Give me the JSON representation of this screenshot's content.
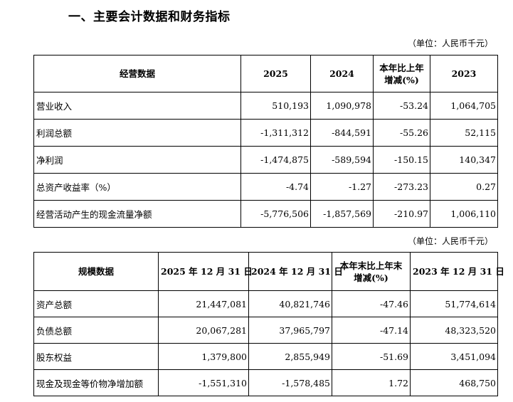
{
  "heading": "一、主要会计数据和财务指标",
  "unit_label": "（单位：人民币千元）",
  "operating": {
    "headers": [
      "经营数据",
      "2025",
      "2024",
      "本年比上年\n增减(%)",
      "2023"
    ],
    "rows": [
      [
        "营业收入",
        "510,193",
        "1,090,978",
        "-53.24",
        "1,064,705"
      ],
      [
        "利润总额",
        "-1,311,312",
        "-844,591",
        "-55.26",
        "52,115"
      ],
      [
        "净利润",
        "-1,474,875",
        "-589,594",
        "-150.15",
        "140,347"
      ],
      [
        "总资产收益率（%）",
        "-4.74",
        "-1.27",
        "-273.23",
        "0.27"
      ],
      [
        "经营活动产生的现金流量净额",
        "-5,776,506",
        "-1,857,569",
        "-210.97",
        "1,006,110"
      ]
    ]
  },
  "scale": {
    "headers": [
      "规模数据",
      "2025 年 12 月 31 日",
      "2024 年 12 月 31 日",
      "本年末比上年末\n增减(%)",
      "2023 年 12 月 31 日"
    ],
    "rows": [
      [
        "资产总额",
        "21,447,081",
        "40,821,746",
        "-47.46",
        "51,774,614"
      ],
      [
        "负债总额",
        "20,067,281",
        "37,965,797",
        "-47.14",
        "48,323,520"
      ],
      [
        "股东权益",
        "1,379,800",
        "2,855,949",
        "-51.69",
        "3,451,094"
      ],
      [
        "现金及现金等价物净增加额",
        "-1,551,310",
        "-1,578,485",
        "1.72",
        "468,750"
      ]
    ]
  }
}
